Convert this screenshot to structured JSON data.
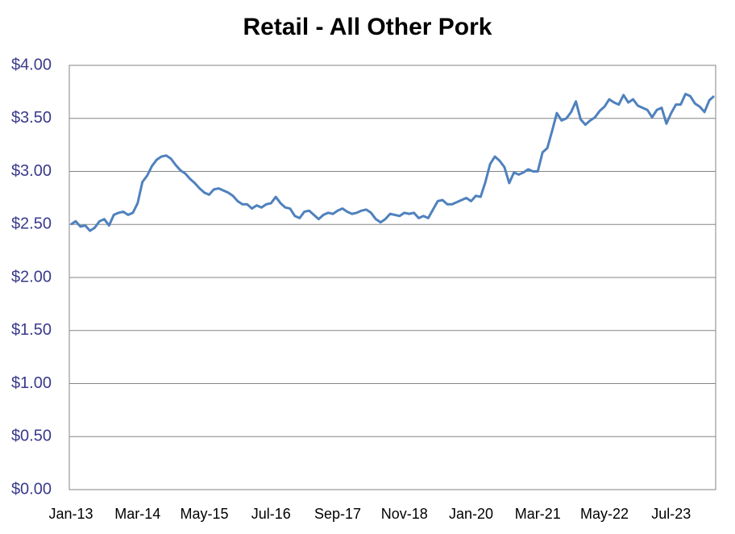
{
  "chart_data": {
    "type": "line",
    "title": "Retail - All Other Pork",
    "categories": [
      "Jan-13",
      null,
      null,
      null,
      null,
      null,
      null,
      null,
      null,
      null,
      null,
      null,
      null,
      null,
      "Mar-14",
      null,
      null,
      null,
      null,
      null,
      null,
      null,
      null,
      null,
      null,
      null,
      null,
      null,
      "May-15",
      null,
      null,
      null,
      null,
      null,
      null,
      null,
      null,
      null,
      null,
      null,
      null,
      null,
      "Jul-16",
      null,
      null,
      null,
      null,
      null,
      null,
      null,
      null,
      null,
      null,
      null,
      null,
      null,
      "Sep-17",
      null,
      null,
      null,
      null,
      null,
      null,
      null,
      null,
      null,
      null,
      null,
      null,
      null,
      "Nov-18",
      null,
      null,
      null,
      null,
      null,
      null,
      null,
      null,
      null,
      null,
      null,
      null,
      null,
      "Jan-20",
      null,
      null,
      null,
      null,
      null,
      null,
      null,
      null,
      null,
      null,
      null,
      null,
      null,
      "Mar-21",
      null,
      null,
      null,
      null,
      null,
      null,
      null,
      null,
      null,
      null,
      null,
      null,
      null,
      "May-22",
      null,
      null,
      null,
      null,
      null,
      null,
      null,
      null,
      null,
      null,
      null,
      null,
      null,
      "Jul-23",
      null,
      null,
      null,
      null,
      null,
      null,
      null,
      null,
      null
    ],
    "values": [
      2.5,
      2.53,
      2.48,
      2.49,
      2.44,
      2.47,
      2.53,
      2.55,
      2.49,
      2.59,
      2.61,
      2.62,
      2.59,
      2.61,
      2.7,
      2.9,
      2.96,
      3.05,
      3.11,
      3.14,
      3.15,
      3.12,
      3.06,
      3.01,
      2.98,
      2.93,
      2.89,
      2.84,
      2.8,
      2.78,
      2.83,
      2.84,
      2.82,
      2.8,
      2.77,
      2.72,
      2.69,
      2.69,
      2.65,
      2.68,
      2.66,
      2.69,
      2.7,
      2.76,
      2.7,
      2.66,
      2.65,
      2.58,
      2.56,
      2.62,
      2.63,
      2.59,
      2.55,
      2.59,
      2.61,
      2.6,
      2.63,
      2.65,
      2.62,
      2.6,
      2.61,
      2.63,
      2.64,
      2.61,
      2.55,
      2.52,
      2.55,
      2.6,
      2.59,
      2.58,
      2.61,
      2.6,
      2.61,
      2.56,
      2.58,
      2.56,
      2.64,
      2.72,
      2.73,
      2.69,
      2.69,
      2.71,
      2.73,
      2.75,
      2.72,
      2.77,
      2.76,
      2.9,
      3.07,
      3.14,
      3.1,
      3.04,
      2.89,
      2.99,
      2.97,
      2.99,
      3.02,
      3.0,
      3.0,
      3.18,
      3.22,
      3.38,
      3.55,
      3.48,
      3.5,
      3.56,
      3.66,
      3.49,
      3.44,
      3.48,
      3.51,
      3.57,
      3.61,
      3.68,
      3.65,
      3.63,
      3.72,
      3.65,
      3.68,
      3.62,
      3.6,
      3.58,
      3.51,
      3.58,
      3.6,
      3.45,
      3.55,
      3.63,
      3.63,
      3.73,
      3.71,
      3.64,
      3.61,
      3.56,
      3.67,
      3.71
    ],
    "color": "#4f81bd",
    "ylim": [
      0,
      4
    ],
    "yticks": [
      {
        "value": 0,
        "label": "$0.00"
      },
      {
        "value": 0.5,
        "label": "$0.50"
      },
      {
        "value": 1,
        "label": "$1.00"
      },
      {
        "value": 1.5,
        "label": "$1.50"
      },
      {
        "value": 2,
        "label": "$2.00"
      },
      {
        "value": 2.5,
        "label": "$2.50"
      },
      {
        "value": 3,
        "label": "$3.00"
      },
      {
        "value": 3.5,
        "label": "$3.50"
      },
      {
        "value": 4,
        "label": "$4.00"
      }
    ],
    "grid": true
  }
}
